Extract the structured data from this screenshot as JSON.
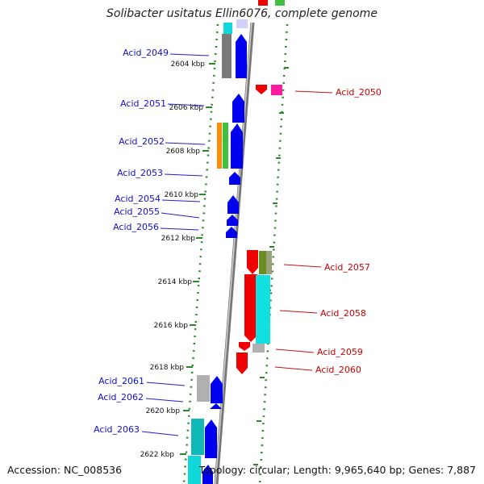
{
  "title": "Solibacter usitatus Ellin6076, complete genome",
  "accession": "Accession: NC_008536",
  "topology": "Topology: circular; Length: 9,965,640 bp; Genes: 7,887",
  "colors": {
    "forward_gene": "#0000ee",
    "reverse_gene": "#ee0000",
    "axis": "#888888",
    "tick": "#2a8a2a",
    "left_label": "#1010cc",
    "right_label": "#cc0000"
  },
  "kbp_ticks": [
    "2604 kbp",
    "2606 kbp",
    "2608 kbp",
    "2610 kbp",
    "2612 kbp",
    "2614 kbp",
    "2616 kbp",
    "2618 kbp",
    "2620 kbp",
    "2622 kbp"
  ],
  "left_labels": [
    "Acid_2049",
    "Acid_2051",
    "Acid_2052",
    "Acid_2053",
    "Acid_2054",
    "Acid_2055",
    "Acid_2056",
    "Acid_2061",
    "Acid_2062",
    "Acid_2063"
  ],
  "right_labels": [
    "Acid_2050",
    "Acid_2057",
    "Acid_2058",
    "Acid_2059",
    "Acid_2060"
  ]
}
